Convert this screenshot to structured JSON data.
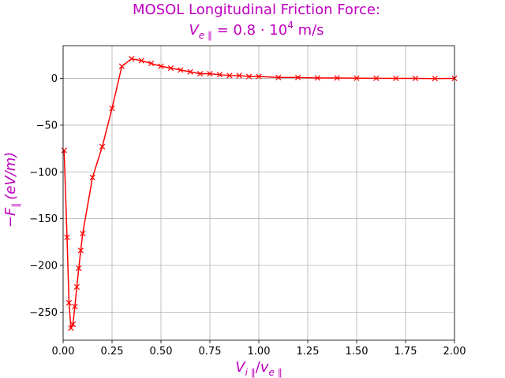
{
  "chart_data": {
    "type": "line",
    "title_line1": "MOSOL Longitudinal Friction Force:",
    "title_line2": "V_{e∥} = 0.8·10^4 m/s",
    "title_line2_parts": {
      "var": "V",
      "sub": "e ∥",
      "eq": " = 0.8 · 10",
      "sup": "4",
      "unit": " m/s"
    },
    "xlabel": "V_{i∥}/v_{e∥}",
    "xlabel_parts": {
      "var1": "V",
      "sub1": "i ∥",
      "slash": "/",
      "var2": "v",
      "sub2": "e ∥"
    },
    "ylabel": "−F_∥ (eV/m)",
    "ylabel_parts": {
      "minus": "−",
      "var": "F",
      "sub": "∥",
      "unit": "(eV/m)"
    },
    "xlim": [
      0.0,
      2.0
    ],
    "ylim": [
      -280,
      35
    ],
    "xticks": [
      0.0,
      0.25,
      0.5,
      0.75,
      1.0,
      1.25,
      1.5,
      1.75,
      2.0
    ],
    "xtick_labels": [
      "0.00",
      "0.25",
      "0.50",
      "0.75",
      "1.00",
      "1.25",
      "1.50",
      "1.75",
      "2.00"
    ],
    "yticks": [
      0,
      -50,
      -100,
      -150,
      -200,
      -250
    ],
    "ytick_labels": [
      "0",
      "−50",
      "−100",
      "−150",
      "−200",
      "−250"
    ],
    "grid": true,
    "series": [
      {
        "color": "#ff0000",
        "marker": "x",
        "x": [
          0.005,
          0.02,
          0.03,
          0.04,
          0.05,
          0.06,
          0.07,
          0.08,
          0.09,
          0.1,
          0.15,
          0.2,
          0.25,
          0.3,
          0.35,
          0.4,
          0.45,
          0.5,
          0.55,
          0.6,
          0.65,
          0.7,
          0.75,
          0.8,
          0.85,
          0.9,
          0.95,
          1.0,
          1.1,
          1.2,
          1.3,
          1.4,
          1.5,
          1.6,
          1.7,
          1.8,
          1.9,
          2.0
        ],
        "y": [
          -77,
          -170,
          -240,
          -267,
          -263,
          -244,
          -223,
          -203,
          -184,
          -166,
          -106,
          -73,
          -32,
          13,
          21,
          19,
          16,
          13,
          11,
          9,
          7,
          5,
          5,
          4,
          3,
          3,
          2,
          2,
          1,
          1,
          0.5,
          0.5,
          0.3,
          0.2,
          0.1,
          0,
          -0.2,
          0
        ]
      }
    ]
  },
  "colors": {
    "title": "#bf00bf",
    "axis_labels": "#bf00bf",
    "series": "#ff0000"
  }
}
